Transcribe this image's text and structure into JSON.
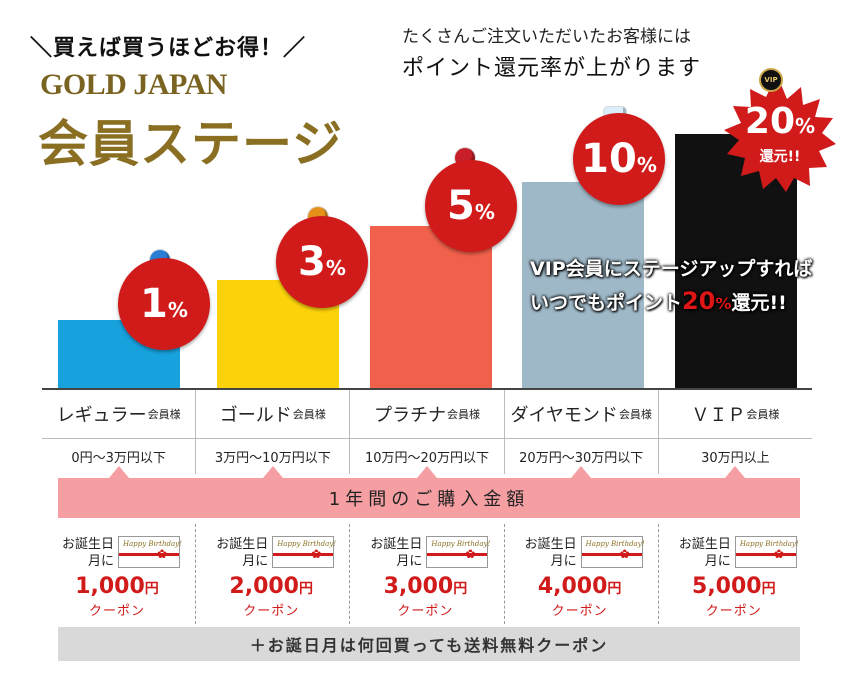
{
  "header": {
    "tagline": "＼買えば買うほどお得！／",
    "brand": "GOLD JAPAN",
    "title": "会員ステージ",
    "note_line1": "たくさんご注文いただいたお客様には",
    "note_line2": "ポイント還元率が上がります"
  },
  "colors": {
    "regular": "#17a1dd",
    "gold": "#fcd20b",
    "platinum": "#f0604a",
    "diamond": "#9fb8c7",
    "vip": "#111111",
    "badge": "#d11b1b",
    "accent_gold": "#8a6f23",
    "purchase_bar": "#f59fa3",
    "shipping_bar": "#d9d9d9"
  },
  "badges": {
    "regular": {
      "num": "1",
      "unit": "%"
    },
    "gold": {
      "num": "3",
      "unit": "%"
    },
    "platinum": {
      "num": "5",
      "unit": "%"
    },
    "diamond": {
      "num": "10",
      "unit": "%"
    },
    "vip": {
      "num": "20",
      "unit": "%",
      "sub": "還元!!",
      "seal": "VIP"
    }
  },
  "vip_message": {
    "line1": "VIP会員にステージアップすれば",
    "line2_prefix": "いつでもポイント",
    "highlight": "20",
    "highlight_unit": "%",
    "line2_suffix": "還元!!"
  },
  "stages": [
    {
      "name": "レギュラー",
      "suffix": "会員様",
      "range": "0円〜3万円以下"
    },
    {
      "name": "ゴールド",
      "suffix": "会員様",
      "range": "3万円〜10万円以下"
    },
    {
      "name": "プラチナ",
      "suffix": "会員様",
      "range": "10万円〜20万円以下"
    },
    {
      "name": "ダイヤモンド",
      "suffix": "会員様",
      "range": "20万円〜30万円以下"
    },
    {
      "name": "ＶＩＰ",
      "suffix": "会員様",
      "range": "30万円以上"
    }
  ],
  "purchase_label": "1年間のご購入金額",
  "coupons": [
    {
      "label_l1": "お誕生日",
      "label_l2": "月に",
      "card_text": "Happy Birthday!",
      "amount": "1,000",
      "yen": "円",
      "kind": "クーポン"
    },
    {
      "label_l1": "お誕生日",
      "label_l2": "月に",
      "card_text": "Happy Birthday!",
      "amount": "2,000",
      "yen": "円",
      "kind": "クーポン"
    },
    {
      "label_l1": "お誕生日",
      "label_l2": "月に",
      "card_text": "Happy Birthday!",
      "amount": "3,000",
      "yen": "円",
      "kind": "クーポン"
    },
    {
      "label_l1": "お誕生日",
      "label_l2": "月に",
      "card_text": "Happy Birthday!",
      "amount": "4,000",
      "yen": "円",
      "kind": "クーポン"
    },
    {
      "label_l1": "お誕生日",
      "label_l2": "月に",
      "card_text": "Happy Birthday!",
      "amount": "5,000",
      "yen": "円",
      "kind": "クーポン"
    }
  ],
  "shipping_label": "＋お誕日月は何回買っても送料無料クーポン"
}
